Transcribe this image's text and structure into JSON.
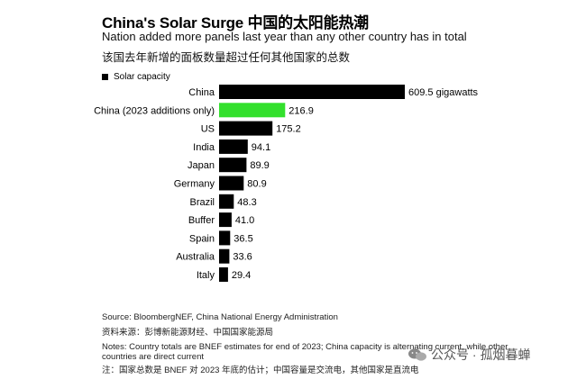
{
  "header": {
    "title": "China's Solar Surge 中国的太阳能热潮",
    "subtitle": "Nation added more panels last year than any other country has in total",
    "subtitle_cn": "该国去年新增的面板数量超过任何其他国家的总数"
  },
  "legend": {
    "label": "Solar capacity"
  },
  "colors": {
    "bar": "#000000",
    "highlight": "#33e02d"
  },
  "chart_data": {
    "type": "bar",
    "orientation": "horizontal",
    "categories": [
      "China",
      "China (2023 additions only)",
      "US",
      "India",
      "Japan",
      "Germany",
      "Brazil",
      "Buffer",
      "Spain",
      "Australia",
      "Italy"
    ],
    "values": [
      609.5,
      216.9,
      175.2,
      94.1,
      89.9,
      80.9,
      48.3,
      41.0,
      36.5,
      33.6,
      29.4
    ],
    "value_labels": [
      "609.5 gigawatts",
      "216.9",
      "175.2",
      "94.1",
      "89.9",
      "80.9",
      "48.3",
      "41.0",
      "36.5",
      "33.6",
      "29.4"
    ],
    "highlight_index": 1,
    "xlim": [
      0,
      609.5
    ],
    "grid": false,
    "legend_position": "top-left",
    "series": [
      {
        "name": "Solar capacity",
        "values": [
          609.5,
          216.9,
          175.2,
          94.1,
          89.9,
          80.9,
          48.3,
          41.0,
          36.5,
          33.6,
          29.4
        ]
      }
    ]
  },
  "footer": {
    "source": "Source: BloombergNEF, China National Energy Administration",
    "source_cn": "资料来源：彭博新能源财经、中国国家能源局",
    "notes_line1": "Notes: Country totals are BNEF estimates for end of 2023; China capacity is alternating current, while other",
    "notes_line2": "countries are direct current",
    "notes_cn": "注：国家总数是 BNEF 对 2023 年底的估计；中国容量是交流电，其他国家是直流电"
  },
  "watermark": {
    "text": "公众号 · 孤烟暮蝉",
    "icon": "wechat-icon"
  }
}
